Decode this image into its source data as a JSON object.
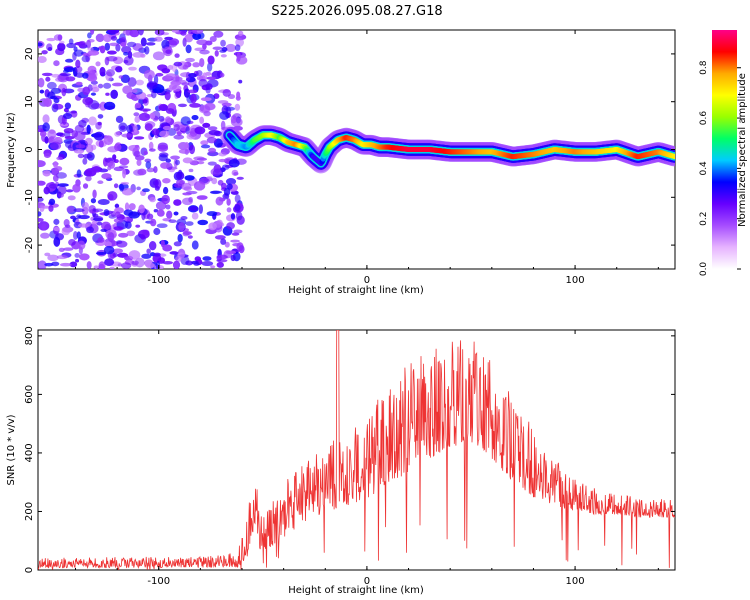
{
  "figure_title": "S225.2026.095.08.27.G18",
  "chart_data": [
    {
      "type": "heatmap",
      "title": "S225.2026.095.08.27.G18",
      "xlabel": "Height of straight line (km)",
      "ylabel": "Frequency (Hz)",
      "xlim": [
        -158,
        148
      ],
      "ylim": [
        -25,
        25
      ],
      "xticks": [
        -100,
        0,
        100
      ],
      "xtick_labels": [
        "-100",
        "0",
        "100"
      ],
      "yticks": [
        -20,
        -10,
        0,
        10,
        20
      ],
      "ytick_labels": [
        "-20",
        "-10",
        "0",
        "10",
        "20"
      ],
      "colorbar": {
        "label": "Normalized spectral amplitude",
        "range": [
          0,
          0.95
        ],
        "ticks": [
          0,
          0.2,
          0.4,
          0.6,
          0.8
        ],
        "tick_labels": [
          "0.0",
          "0.2",
          "0.4",
          "0.6",
          "0.8"
        ],
        "colors": [
          "#ffffff",
          "#e6b3ff",
          "#a64dff",
          "#6600ff",
          "#0000ff",
          "#00ccff",
          "#00ff66",
          "#99ff00",
          "#ffff00",
          "#ffaa00",
          "#ff0000",
          "#ff0088"
        ]
      },
      "trace": {
        "x": [
          -66,
          -62,
          -58,
          -54,
          -50,
          -46,
          -42,
          -38,
          -34,
          -30,
          -26,
          -22,
          -20,
          -18,
          -14,
          -10,
          -6,
          -2,
          2,
          6,
          10,
          20,
          30,
          40,
          50,
          60,
          70,
          80,
          90,
          100,
          110,
          120,
          130,
          140,
          148
        ],
        "freq": [
          3,
          1,
          0.5,
          2,
          3,
          3,
          2.5,
          1.5,
          1,
          0.5,
          -1.5,
          -3,
          -1,
          0.5,
          2,
          2.5,
          2,
          1,
          1,
          0.5,
          0.5,
          0,
          0,
          -0.5,
          -0.5,
          -0.5,
          -1.5,
          -1,
          0,
          -0.5,
          -0.5,
          0,
          -1.5,
          -0.5,
          -1.5
        ],
        "amp": [
          0.3,
          0.45,
          0.4,
          0.55,
          0.6,
          0.7,
          0.55,
          0.75,
          0.8,
          0.6,
          0.3,
          0.3,
          0.5,
          0.6,
          0.75,
          0.85,
          0.8,
          0.7,
          0.75,
          0.8,
          0.85,
          0.9,
          0.9,
          0.85,
          0.8,
          0.75,
          0.85,
          0.8,
          0.75,
          0.8,
          0.75,
          0.7,
          0.85,
          0.8,
          0.7
        ]
      },
      "noise_region_x": [
        -158,
        -68
      ]
    },
    {
      "type": "line",
      "xlabel": "Height of straight line (km)",
      "ylabel": "SNR (10 * v/v)",
      "xlim": [
        -158,
        148
      ],
      "ylim": [
        0,
        820
      ],
      "xticks": [
        -100,
        0,
        100
      ],
      "xtick_labels": [
        "-100",
        "0",
        "100"
      ],
      "yticks": [
        0,
        200,
        400,
        600,
        800
      ],
      "ytick_labels": [
        "0",
        "200",
        "400",
        "600",
        "800"
      ],
      "color": "#ee3333",
      "envelope": {
        "x": [
          -158,
          -120,
          -80,
          -62,
          -58,
          -55,
          -53,
          -51,
          -48,
          -44,
          -38,
          -30,
          -20,
          -15,
          -10,
          0,
          10,
          20,
          30,
          40,
          50,
          55,
          60,
          70,
          80,
          90,
          100,
          110,
          120,
          130,
          140,
          148
        ],
        "low": [
          8,
          8,
          8,
          10,
          40,
          80,
          100,
          60,
          70,
          90,
          120,
          160,
          200,
          200,
          220,
          240,
          300,
          330,
          380,
          420,
          430,
          420,
          380,
          300,
          250,
          220,
          200,
          190,
          190,
          180,
          180,
          180
        ],
        "high": [
          40,
          45,
          45,
          60,
          200,
          280,
          300,
          200,
          220,
          300,
          320,
          380,
          440,
          460,
          480,
          520,
          640,
          720,
          760,
          780,
          790,
          770,
          720,
          600,
          480,
          400,
          320,
          280,
          260,
          250,
          250,
          240
        ]
      },
      "spike": {
        "x": -14,
        "y": 820
      }
    }
  ]
}
